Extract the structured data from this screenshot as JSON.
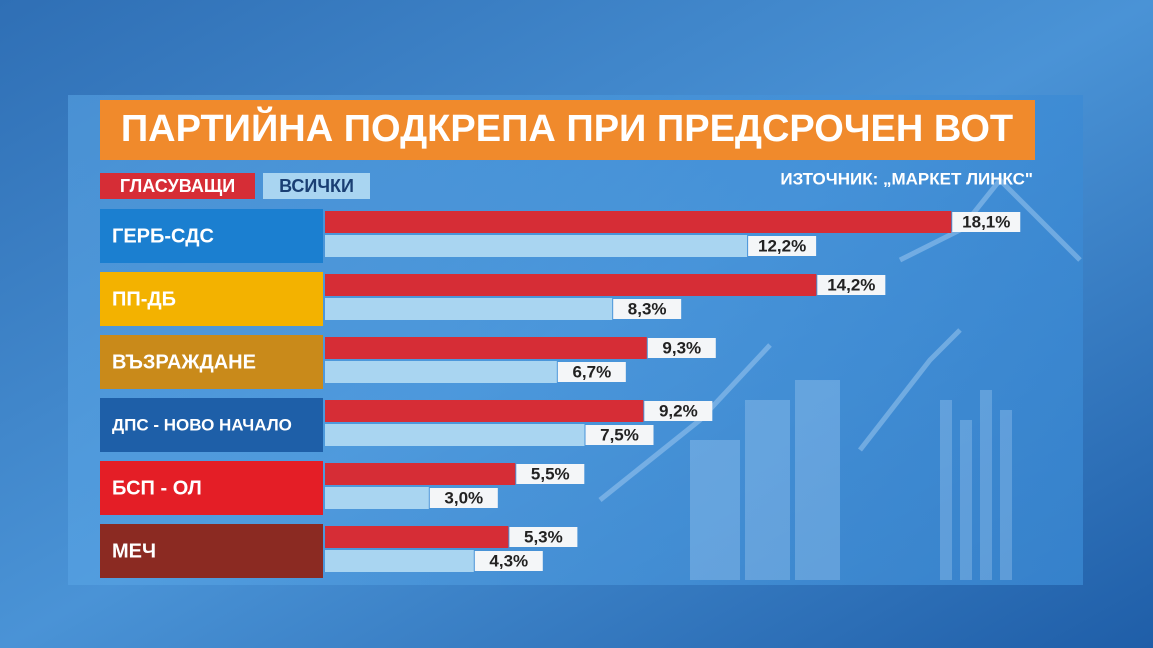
{
  "chart_data": {
    "type": "bar",
    "orientation": "horizontal",
    "title": "ПАРТИЙНА ПОДКРЕПА ПРИ ПРЕДСРОЧЕН ВОТ",
    "source": "ИЗТОЧНИК: „МАРКЕТ ЛИНКС\"",
    "categories": [
      "ГЕРБ-СДС",
      "ПП-ДБ",
      "ВЪЗРАЖДАНЕ",
      "ДПС - НОВО НАЧАЛО",
      "БСП - ОЛ",
      "МЕЧ"
    ],
    "category_colors": [
      "#1b7fd0",
      "#f3b200",
      "#c98a1a",
      "#1e5fa8",
      "#e41e26",
      "#8b2a22"
    ],
    "series": [
      {
        "name": "ГЛАСУВАЩИ",
        "color": "#d62d36",
        "values": [
          18.1,
          14.2,
          9.3,
          9.2,
          5.5,
          5.3
        ],
        "value_labels": [
          "18,1%",
          "14,2%",
          "9,3%",
          "9,2%",
          "5,5%",
          "5,3%"
        ]
      },
      {
        "name": "ВСИЧКИ",
        "color": "#a9d5f1",
        "values": [
          12.2,
          8.3,
          6.7,
          7.5,
          3.0,
          4.3
        ],
        "value_labels": [
          "12,2%",
          "8,3%",
          "6,7%",
          "7,5%",
          "3,0%",
          "4,3%"
        ]
      }
    ]
  }
}
